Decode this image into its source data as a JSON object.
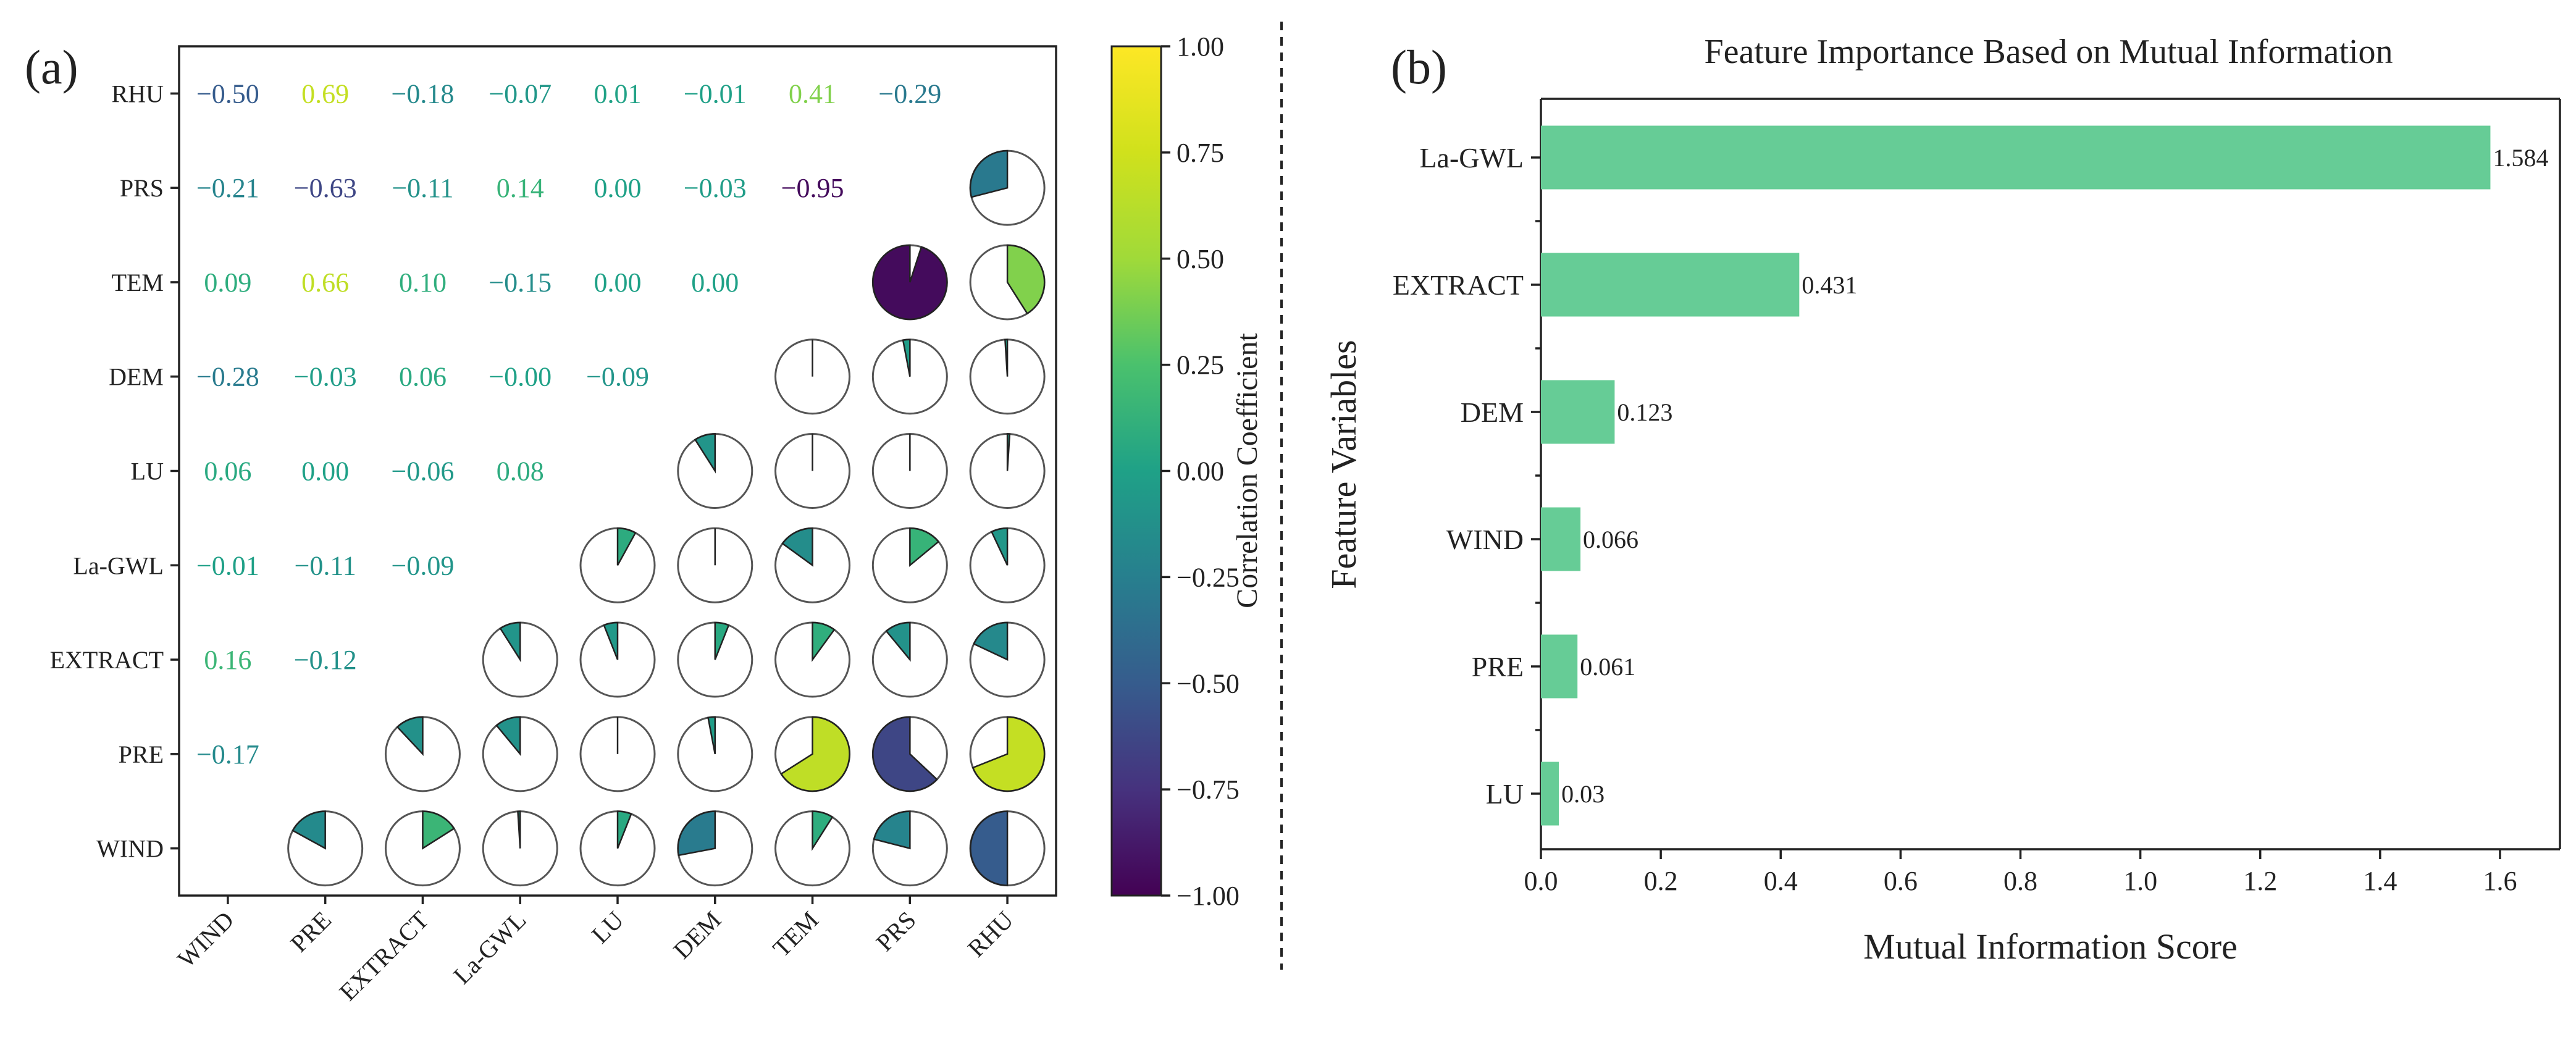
{
  "chart_data": [
    {
      "type": "heatmap",
      "panel_label": "(a)",
      "description": "Correlation matrix: lower-triangle numeric coefficients, upper-triangle pie glyphs",
      "row_labels": [
        "RHU",
        "PRS",
        "TEM",
        "DEM",
        "LU",
        "La-GWL",
        "EXTRACT",
        "PRE",
        "WIND"
      ],
      "col_labels": [
        "WIND",
        "PRE",
        "EXTRACT",
        "La-GWL",
        "LU",
        "DEM",
        "TEM",
        "PRS",
        "RHU"
      ],
      "labels": [
        [
          "−0.50",
          "0.69",
          "−0.18",
          "−0.07",
          "0.01",
          "−0.01",
          "0.41",
          "−0.29",
          null
        ],
        [
          "−0.21",
          "−0.63",
          "−0.11",
          "0.14",
          "0.00",
          "−0.03",
          "−0.95",
          null,
          null
        ],
        [
          "0.09",
          "0.66",
          "0.10",
          "−0.15",
          "0.00",
          "0.00",
          null,
          null,
          null
        ],
        [
          "−0.28",
          "−0.03",
          "0.06",
          "−0.00",
          "−0.09",
          null,
          null,
          null,
          null
        ],
        [
          "0.06",
          "0.00",
          "−0.06",
          "0.08",
          null,
          null,
          null,
          null,
          null
        ],
        [
          "−0.01",
          "−0.11",
          "−0.09",
          null,
          null,
          null,
          null,
          null,
          null
        ],
        [
          "0.16",
          "−0.12",
          null,
          null,
          null,
          null,
          null,
          null,
          null
        ],
        [
          "−0.17",
          null,
          null,
          null,
          null,
          null,
          null,
          null,
          null
        ],
        [
          null,
          null,
          null,
          null,
          null,
          null,
          null,
          null,
          null
        ]
      ],
      "values": [
        [
          -0.5,
          0.69,
          -0.18,
          -0.07,
          0.01,
          -0.01,
          0.41,
          -0.29,
          null
        ],
        [
          -0.21,
          -0.63,
          -0.11,
          0.14,
          0.0,
          -0.03,
          -0.95,
          null,
          null
        ],
        [
          0.09,
          0.66,
          0.1,
          -0.15,
          0.0,
          0.0,
          null,
          null,
          null
        ],
        [
          -0.28,
          -0.03,
          0.06,
          -0.0,
          -0.09,
          null,
          null,
          null,
          null
        ],
        [
          0.06,
          0.0,
          -0.06,
          0.08,
          null,
          null,
          null,
          null,
          null
        ],
        [
          -0.01,
          -0.11,
          -0.09,
          null,
          null,
          null,
          null,
          null,
          null
        ],
        [
          0.16,
          -0.12,
          null,
          null,
          null,
          null,
          null,
          null,
          null
        ],
        [
          -0.17,
          null,
          null,
          null,
          null,
          null,
          null,
          null,
          null
        ],
        [
          null,
          null,
          null,
          null,
          null,
          null,
          null,
          null,
          null
        ]
      ],
      "colorbar": {
        "label": "Correlation Coefficient",
        "range": [
          -1.0,
          1.0
        ],
        "ticks": [
          "1.00",
          "0.75",
          "0.50",
          "0.25",
          "0.00",
          "−0.25",
          "−0.50",
          "−0.75",
          "−1.00"
        ],
        "colormap": "viridis"
      }
    },
    {
      "type": "bar",
      "orientation": "horizontal",
      "panel_label": "(b)",
      "title": "Feature Importance Based on Mutual Information",
      "xlabel": "Mutual Information Score",
      "ylabel": "Feature Variables",
      "categories": [
        "La-GWL",
        "EXTRACT",
        "DEM",
        "WIND",
        "PRE",
        "LU"
      ],
      "values": [
        1.584,
        0.431,
        0.123,
        0.066,
        0.061,
        0.03
      ],
      "value_labels": [
        "1.584",
        "0.431",
        "0.123",
        "0.066",
        "0.061",
        "0.03"
      ],
      "xlim": [
        0,
        1.7
      ],
      "xticks": [
        "0.0",
        "0.2",
        "0.4",
        "0.6",
        "0.8",
        "1.0",
        "1.2",
        "1.4",
        "1.6"
      ],
      "bar_color": "#66cc96",
      "grid": false
    }
  ]
}
